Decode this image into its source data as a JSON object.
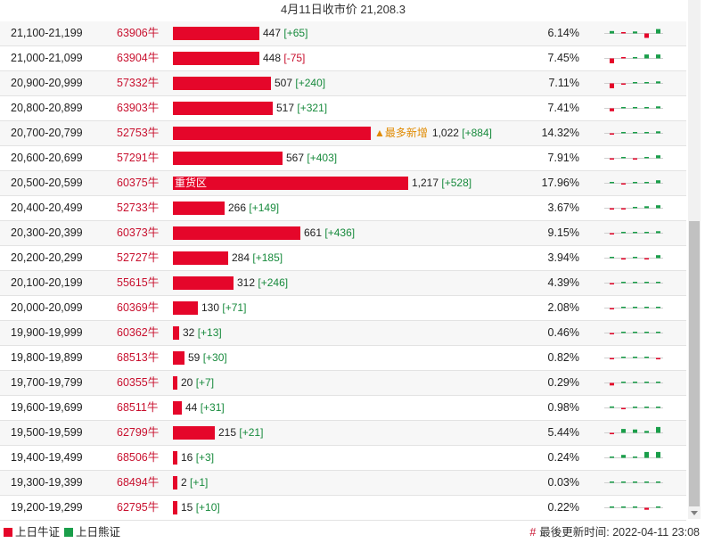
{
  "header": {
    "title": "4月11日收市价 21,208.3"
  },
  "colors": {
    "bull": "#e5062a",
    "bear": "#1a9e4a"
  },
  "bar_max_oi": 1217,
  "rows": [
    {
      "range": "21,100-21,199",
      "code": "63906牛",
      "oi": "447",
      "oi_value": 447,
      "change": "[+65]",
      "change_sign": "pos",
      "pct": "6.14%",
      "spark": [
        {
          "c": "bear",
          "v": 0.25
        },
        {
          "c": "bull",
          "v": 0
        },
        {
          "c": "bear",
          "v": 0.2
        },
        {
          "c": "bull",
          "v": -0.45
        },
        {
          "c": "bear",
          "v": 0.45
        },
        {
          "c": "bear",
          "v": 0.2
        }
      ]
    },
    {
      "range": "21,000-21,099",
      "code": "63904牛",
      "oi": "448",
      "oi_value": 448,
      "change": "[-75]",
      "change_sign": "neg",
      "pct": "7.45%",
      "spark": [
        {
          "c": "bull",
          "v": -0.5
        },
        {
          "c": "bull",
          "v": 0
        },
        {
          "c": "bear",
          "v": 0.1
        },
        {
          "c": "bear",
          "v": 0.4
        },
        {
          "c": "bear",
          "v": 0.4
        },
        {
          "c": "bull",
          "v": -0.2
        }
      ]
    },
    {
      "range": "20,900-20,999",
      "code": "57332牛",
      "oi": "507",
      "oi_value": 507,
      "change": "[+240]",
      "change_sign": "pos",
      "pct": "7.11%",
      "spark": [
        {
          "c": "bull",
          "v": -0.5
        },
        {
          "c": "bull",
          "v": -0.05
        },
        {
          "c": "bear",
          "v": 0.1
        },
        {
          "c": "bear",
          "v": 0.12
        },
        {
          "c": "bear",
          "v": 0.2
        },
        {
          "c": "bear",
          "v": 0.7
        }
      ]
    },
    {
      "range": "20,800-20,899",
      "code": "63903牛",
      "oi": "517",
      "oi_value": 517,
      "change": "[+321]",
      "change_sign": "pos",
      "pct": "7.41%",
      "spark": [
        {
          "c": "bull",
          "v": -0.3
        },
        {
          "c": "bear",
          "v": 0.1
        },
        {
          "c": "bear",
          "v": 0.1
        },
        {
          "c": "bear",
          "v": 0.08
        },
        {
          "c": "bear",
          "v": 0.2
        },
        {
          "c": "bear",
          "v": 0.7
        }
      ]
    },
    {
      "range": "20,700-20,799",
      "code": "52753牛",
      "oi": "1,022",
      "oi_value": 1022,
      "change": "[+884]",
      "change_sign": "pos",
      "pct": "14.32%",
      "marker": "▲最多新增",
      "spark": [
        {
          "c": "bull",
          "v": -0.05
        },
        {
          "c": "bear",
          "v": 0.06
        },
        {
          "c": "bear",
          "v": 0.06
        },
        {
          "c": "bear",
          "v": 0.08
        },
        {
          "c": "bear",
          "v": 0.2
        },
        {
          "c": "bear",
          "v": 0.8
        }
      ]
    },
    {
      "range": "20,600-20,699",
      "code": "57291牛",
      "oi": "567",
      "oi_value": 567,
      "change": "[+403]",
      "change_sign": "pos",
      "pct": "7.91%",
      "spark": [
        {
          "c": "bull",
          "v": -0.05
        },
        {
          "c": "bear",
          "v": 0.06
        },
        {
          "c": "bull",
          "v": -0.06
        },
        {
          "c": "bear",
          "v": 0.08
        },
        {
          "c": "bear",
          "v": 0.3
        },
        {
          "c": "bear",
          "v": 0.7
        }
      ]
    },
    {
      "range": "20,500-20,599",
      "code": "60375牛",
      "oi": "1,217",
      "oi_value": 1217,
      "change": "[+528]",
      "change_sign": "pos",
      "pct": "17.96%",
      "bar_label": "重货区",
      "spark": [
        {
          "c": "bear",
          "v": 0.02
        },
        {
          "c": "bull",
          "v": -0.12
        },
        {
          "c": "bear",
          "v": 0.06
        },
        {
          "c": "bear",
          "v": 0.12
        },
        {
          "c": "bear",
          "v": 0.3
        },
        {
          "c": "bear",
          "v": 0.7
        }
      ]
    },
    {
      "range": "20,400-20,499",
      "code": "52733牛",
      "oi": "266",
      "oi_value": 266,
      "change": "[+149]",
      "change_sign": "pos",
      "pct": "3.67%",
      "spark": [
        {
          "c": "bull",
          "v": -0.15
        },
        {
          "c": "bull",
          "v": -0.05
        },
        {
          "c": "bear",
          "v": 0.08
        },
        {
          "c": "bear",
          "v": 0.2
        },
        {
          "c": "bear",
          "v": 0.3
        },
        {
          "c": "bear",
          "v": 0.7
        }
      ]
    },
    {
      "range": "20,300-20,399",
      "code": "60373牛",
      "oi": "661",
      "oi_value": 661,
      "change": "[+436]",
      "change_sign": "pos",
      "pct": "9.15%",
      "spark": [
        {
          "c": "bull",
          "v": -0.05
        },
        {
          "c": "bear",
          "v": 0.04
        },
        {
          "c": "bear",
          "v": 0.06
        },
        {
          "c": "bear",
          "v": 0.08
        },
        {
          "c": "bear",
          "v": 0.2
        },
        {
          "c": "bear",
          "v": 0.75
        }
      ]
    },
    {
      "range": "20,200-20,299",
      "code": "52727牛",
      "oi": "284",
      "oi_value": 284,
      "change": "[+185]",
      "change_sign": "pos",
      "pct": "3.94%",
      "spark": [
        {
          "c": "bear",
          "v": 0.02
        },
        {
          "c": "bull",
          "v": -0.15
        },
        {
          "c": "bear",
          "v": 0.06
        },
        {
          "c": "bull",
          "v": -0.06
        },
        {
          "c": "bear",
          "v": 0.3
        },
        {
          "c": "bear",
          "v": 0.7
        }
      ]
    },
    {
      "range": "20,100-20,199",
      "code": "55615牛",
      "oi": "312",
      "oi_value": 312,
      "change": "[+246]",
      "change_sign": "pos",
      "pct": "4.39%",
      "spark": [
        {
          "c": "bull",
          "v": -0.1
        },
        {
          "c": "bear",
          "v": 0.02
        },
        {
          "c": "bear",
          "v": 0.04
        },
        {
          "c": "bear",
          "v": 0.06
        },
        {
          "c": "bear",
          "v": 0.1
        },
        {
          "c": "bear",
          "v": 0.8
        }
      ]
    },
    {
      "range": "20,000-20,099",
      "code": "60369牛",
      "oi": "130",
      "oi_value": 130,
      "change": "[+71]",
      "change_sign": "pos",
      "pct": "2.08%",
      "spark": [
        {
          "c": "bull",
          "v": -0.05
        },
        {
          "c": "bear",
          "v": 0.02
        },
        {
          "c": "bear",
          "v": 0.04
        },
        {
          "c": "bear",
          "v": 0.06
        },
        {
          "c": "bear",
          "v": 0.08
        },
        {
          "c": "bear",
          "v": 0.75
        }
      ]
    },
    {
      "range": "19,900-19,999",
      "code": "60362牛",
      "oi": "32",
      "oi_value": 32,
      "change": "[+13]",
      "change_sign": "pos",
      "pct": "0.46%",
      "spark": [
        {
          "c": "bull",
          "v": -0.05
        },
        {
          "c": "bear",
          "v": 0.06
        },
        {
          "c": "bear",
          "v": 0.1
        },
        {
          "c": "bear",
          "v": 0.12
        },
        {
          "c": "bear",
          "v": 0.1
        },
        {
          "c": "bear",
          "v": 0.7
        }
      ]
    },
    {
      "range": "19,800-19,899",
      "code": "68513牛",
      "oi": "59",
      "oi_value": 59,
      "change": "[+30]",
      "change_sign": "pos",
      "pct": "0.82%",
      "spark": [
        {
          "c": "bull",
          "v": -0.05
        },
        {
          "c": "bear",
          "v": 0.02
        },
        {
          "c": "bear",
          "v": 0.02
        },
        {
          "c": "bear",
          "v": 0.04
        },
        {
          "c": "bull",
          "v": -0.05
        },
        {
          "c": "bear",
          "v": 0.7
        }
      ]
    },
    {
      "range": "19,700-19,799",
      "code": "60355牛",
      "oi": "20",
      "oi_value": 20,
      "change": "[+7]",
      "change_sign": "pos",
      "pct": "0.29%",
      "spark": [
        {
          "c": "bull",
          "v": -0.25
        },
        {
          "c": "bear",
          "v": 0.02
        },
        {
          "c": "bear",
          "v": 0.02
        },
        {
          "c": "bear",
          "v": 0.02
        },
        {
          "c": "bear",
          "v": 0.02
        },
        {
          "c": "bear",
          "v": 0.9
        }
      ]
    },
    {
      "range": "19,600-19,699",
      "code": "68511牛",
      "oi": "44",
      "oi_value": 44,
      "change": "[+31]",
      "change_sign": "pos",
      "pct": "0.98%",
      "spark": [
        {
          "c": "bear",
          "v": 0.15
        },
        {
          "c": "bull",
          "v": -0.05
        },
        {
          "c": "bear",
          "v": 0.08
        },
        {
          "c": "bear",
          "v": 0.06
        },
        {
          "c": "bear",
          "v": 0.1
        },
        {
          "c": "bear",
          "v": 0.7
        }
      ]
    },
    {
      "range": "19,500-19,599",
      "code": "62799牛",
      "oi": "215",
      "oi_value": 215,
      "change": "[+21]",
      "change_sign": "pos",
      "pct": "5.44%",
      "spark": [
        {
          "c": "bull",
          "v": -0.05
        },
        {
          "c": "bear",
          "v": 0.4
        },
        {
          "c": "bear",
          "v": 0.35
        },
        {
          "c": "bear",
          "v": 0.2
        },
        {
          "c": "bear",
          "v": 0.6
        },
        {
          "c": "bear",
          "v": 0.4
        }
      ]
    },
    {
      "range": "19,400-19,499",
      "code": "68506牛",
      "oi": "16",
      "oi_value": 16,
      "change": "[+3]",
      "change_sign": "pos",
      "pct": "0.24%",
      "spark": [
        {
          "c": "bear",
          "v": 0.02
        },
        {
          "c": "bear",
          "v": 0.3
        },
        {
          "c": "bear",
          "v": 0.02
        },
        {
          "c": "bear",
          "v": 0.6
        },
        {
          "c": "bear",
          "v": 0.6
        },
        {
          "c": "bear",
          "v": 0.6
        }
      ]
    },
    {
      "range": "19,300-19,399",
      "code": "68494牛",
      "oi": "2",
      "oi_value": 2,
      "change": "[+1]",
      "change_sign": "pos",
      "pct": "0.03%",
      "spark": [
        {
          "c": "bear",
          "v": 0.02
        },
        {
          "c": "bear",
          "v": 0.02
        },
        {
          "c": "bear",
          "v": 0.02
        },
        {
          "c": "bear",
          "v": 0.02
        },
        {
          "c": "bear",
          "v": 0.02
        },
        {
          "c": "bear",
          "v": 0.8
        }
      ]
    },
    {
      "range": "19,200-19,299",
      "code": "62795牛",
      "oi": "15",
      "oi_value": 15,
      "change": "[+10]",
      "change_sign": "pos",
      "pct": "0.22%",
      "spark": [
        {
          "c": "bear",
          "v": 0.02
        },
        {
          "c": "bear",
          "v": 0.02
        },
        {
          "c": "bear",
          "v": 0.02
        },
        {
          "c": "bull",
          "v": -0.2
        },
        {
          "c": "bear",
          "v": 0.02
        },
        {
          "c": "bear",
          "v": 0.8
        }
      ]
    }
  ],
  "footer": {
    "legend_bull": "上日牛证",
    "legend_bear": "上日熊证",
    "updated_hash": "#",
    "updated_text": "最後更新时间: 2022-04-11 23:08"
  }
}
